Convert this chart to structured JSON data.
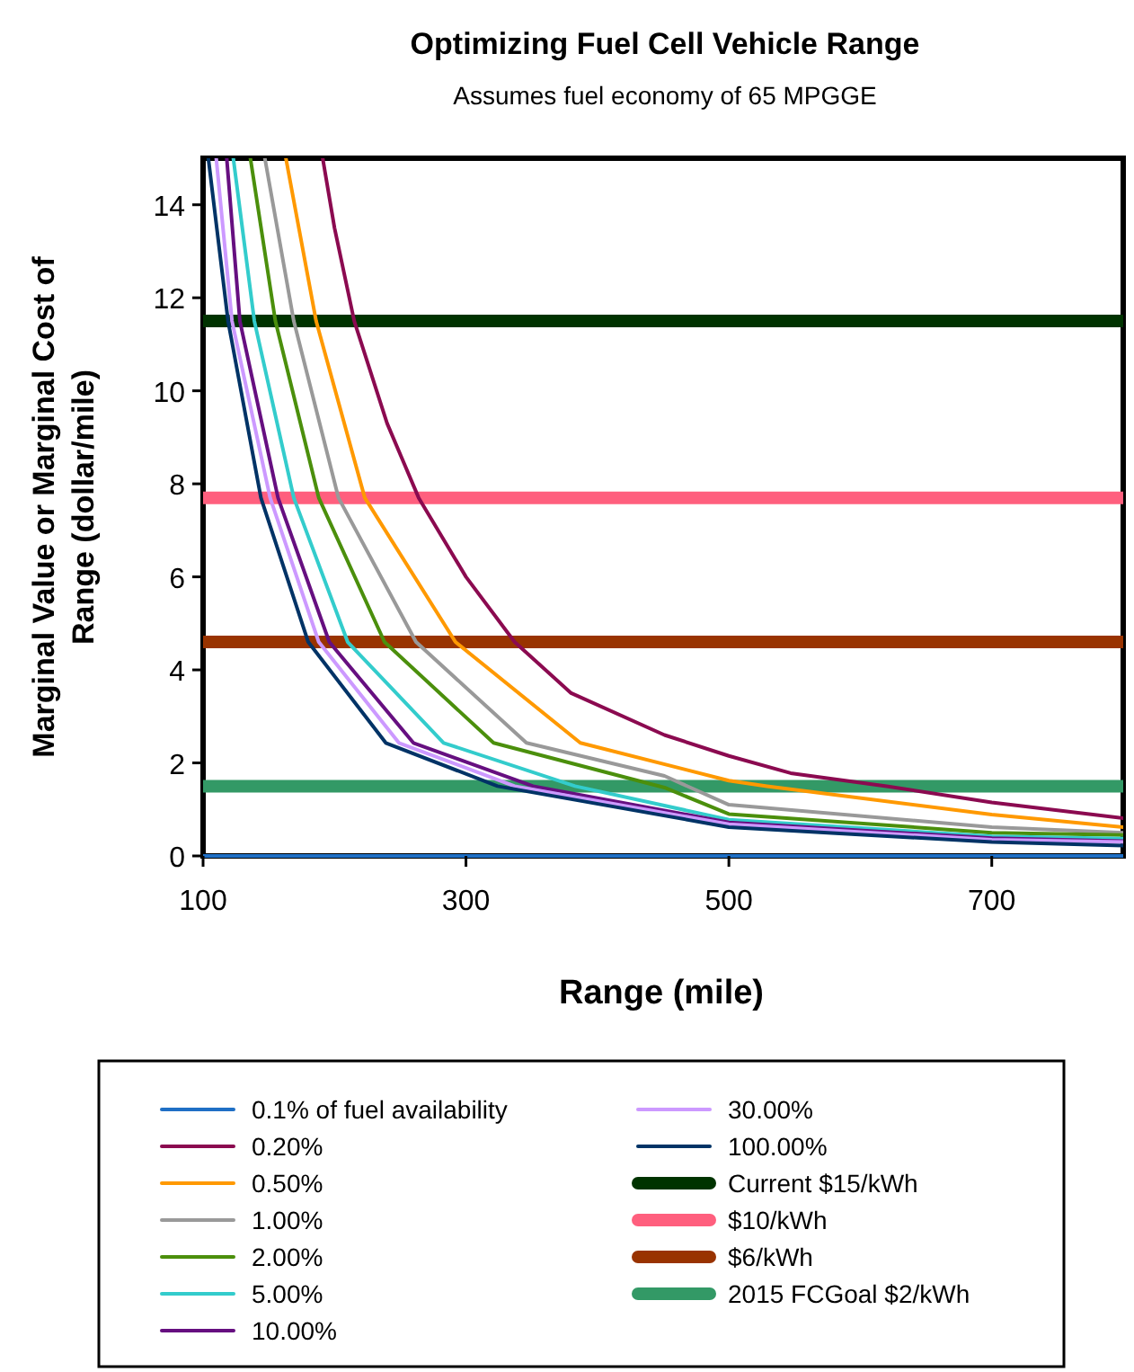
{
  "chart_data": {
    "type": "line",
    "title": "Optimizing Fuel Cell Vehicle Range",
    "subtitle": "Assumes fuel economy of 65 MPGGE",
    "xlabel": "Range (mile)",
    "ylabel": "Marginal Value or Marginal Cost of Range (dollar/mile)",
    "xlim": [
      100,
      800
    ],
    "ylim": [
      0,
      15
    ],
    "xticks": [
      100,
      300,
      500,
      700
    ],
    "yticks": [
      0,
      2,
      4,
      6,
      8,
      10,
      12,
      14
    ],
    "grid": false,
    "legend": "bottom",
    "line_style": "solid",
    "series": [
      {
        "name": "0.1% of fuel availability",
        "color": "#1f6fc5",
        "x": [
          100,
          800
        ],
        "values": [
          0,
          0
        ]
      },
      {
        "name": "0.20%",
        "color": "#8b0a50",
        "x": [
          191,
          200,
          215,
          240,
          264,
          300,
          337,
          380,
          451,
          500,
          547,
          620,
          700,
          800
        ],
        "values": [
          15,
          13.5,
          11.5,
          9.3,
          7.7,
          6.0,
          4.6,
          3.5,
          2.6,
          2.15,
          1.78,
          1.5,
          1.15,
          0.81
        ]
      },
      {
        "name": "0.50%",
        "color": "#ff9900",
        "x": [
          163,
          186,
          223,
          292,
          387,
          500,
          529,
          700,
          800
        ],
        "values": [
          15,
          11.5,
          7.7,
          4.6,
          2.43,
          1.62,
          1.5,
          0.89,
          0.62
        ]
      },
      {
        "name": "1.00%",
        "color": "#999999",
        "x": [
          147,
          169,
          203,
          262,
          346,
          451,
          500,
          700,
          800
        ],
        "values": [
          15,
          11.5,
          7.7,
          4.6,
          2.43,
          1.72,
          1.1,
          0.62,
          0.5
        ]
      },
      {
        "name": "2.00%",
        "color": "#4b8f0c",
        "x": [
          136,
          155,
          188,
          238,
          321,
          451,
          500,
          700,
          800
        ],
        "values": [
          15,
          11.5,
          7.7,
          4.6,
          2.43,
          1.47,
          0.9,
          0.5,
          0.45
        ]
      },
      {
        "name": "5.00%",
        "color": "#33cccc",
        "x": [
          123,
          139,
          169,
          210,
          283,
          383,
          500,
          700,
          800
        ],
        "values": [
          15,
          11.5,
          7.7,
          4.6,
          2.43,
          1.5,
          0.78,
          0.42,
          0.37
        ]
      },
      {
        "name": "10.00%",
        "color": "#660f80",
        "x": [
          118,
          128,
          157,
          196,
          260,
          351,
          500,
          700,
          800
        ],
        "values": [
          15,
          11.5,
          7.7,
          4.6,
          2.43,
          1.5,
          0.72,
          0.38,
          0.32
        ]
      },
      {
        "name": "30.00%",
        "color": "#cc99ff",
        "x": [
          110,
          122,
          151,
          188,
          249,
          337,
          500,
          700,
          800
        ],
        "values": [
          15,
          11.5,
          7.7,
          4.6,
          2.43,
          1.5,
          0.68,
          0.35,
          0.3
        ]
      },
      {
        "name": "100.00%",
        "color": "#003366",
        "x": [
          104,
          119,
          144,
          180,
          239,
          324,
          500,
          700,
          800
        ],
        "values": [
          15,
          11.5,
          7.7,
          4.6,
          2.43,
          1.5,
          0.62,
          0.3,
          0.22
        ]
      }
    ],
    "ref_lines": [
      {
        "axis": "y",
        "value": 11.5,
        "label": "Current $15/kWh",
        "color": "#003300"
      },
      {
        "axis": "y",
        "value": 7.7,
        "label": "$10/kWh",
        "color": "#ff5f7e"
      },
      {
        "axis": "y",
        "value": 4.6,
        "label": "$6/kWh",
        "color": "#993300"
      },
      {
        "axis": "y",
        "value": 1.5,
        "label": "2015 FCGoal $2/kWh",
        "color": "#339966"
      }
    ]
  }
}
